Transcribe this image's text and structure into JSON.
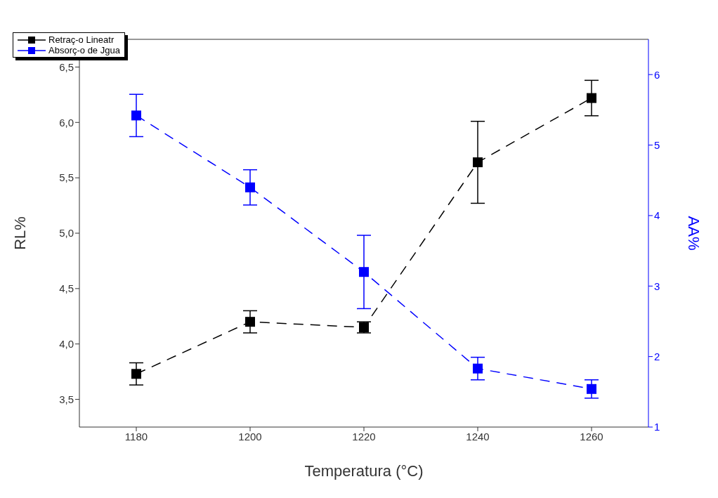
{
  "chart_data": {
    "type": "line",
    "xlabel": "Temperatura (°C)",
    "ylabel": "RL%",
    "y2label": "AA%",
    "x": [
      1180,
      1200,
      1220,
      1240,
      1260
    ],
    "series": [
      {
        "name": "Retraç-o Lineatr",
        "color": "#000000",
        "values": [
          3.73,
          4.2,
          4.15,
          5.64,
          6.22
        ],
        "errors": [
          0.1,
          0.1,
          0.05,
          0.37,
          0.16
        ]
      },
      {
        "name": "Absorç-o de Jgua",
        "color": "#0000ff",
        "axis": "y2",
        "values": [
          5.42,
          4.4,
          3.2,
          1.83,
          1.54
        ],
        "errors": [
          0.3,
          0.25,
          0.52,
          0.16,
          0.13
        ]
      }
    ],
    "xlim": [
      1170,
      1270
    ],
    "xticks": [
      1180,
      1200,
      1220,
      1240,
      1260
    ],
    "ylim": [
      3.25,
      6.75
    ],
    "yticks": [
      {
        "value": 3.5,
        "label": "3,5"
      },
      {
        "value": 4,
        "label": "4,0"
      },
      {
        "value": 4.5,
        "label": "4,5"
      },
      {
        "value": 5,
        "label": "5,0"
      },
      {
        "value": 5.5,
        "label": "5,5"
      },
      {
        "value": 6,
        "label": "6,0"
      },
      {
        "value": 6.5,
        "label": "6,5"
      }
    ],
    "y2lim": [
      1,
      6.5
    ],
    "y2ticks": [
      1,
      2,
      3,
      4,
      5,
      6
    ],
    "marker": "square",
    "line_style": "dashed",
    "legend": "top",
    "grid": false
  }
}
